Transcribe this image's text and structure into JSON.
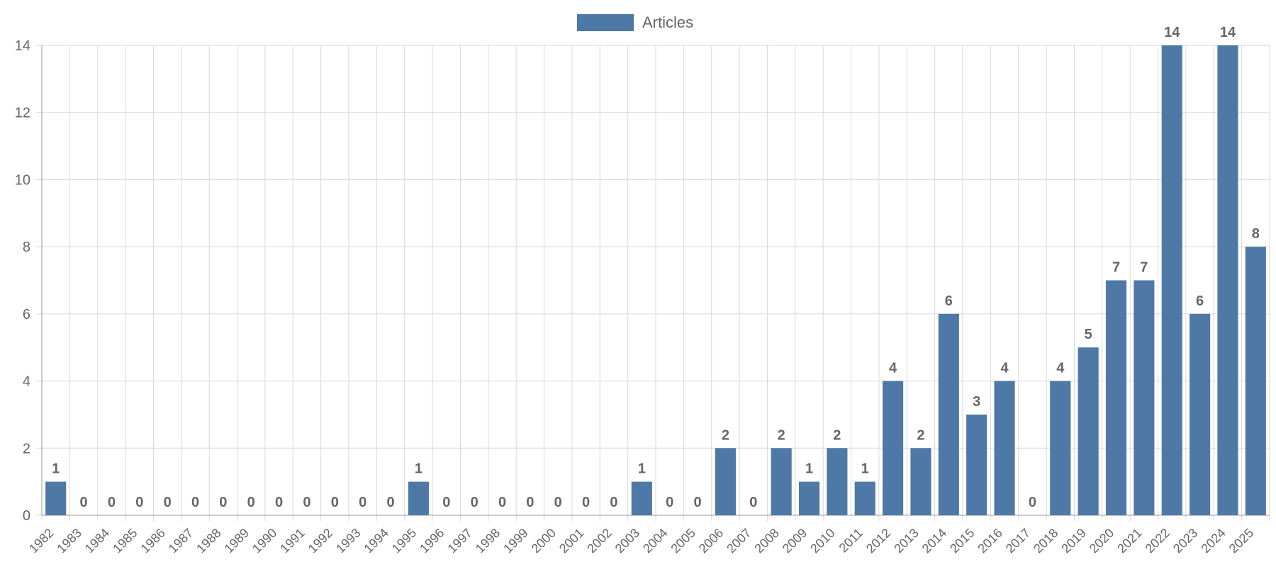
{
  "chart_data": {
    "type": "bar",
    "categories": [
      "1982",
      "1983",
      "1984",
      "1985",
      "1986",
      "1987",
      "1988",
      "1989",
      "1990",
      "1991",
      "1992",
      "1993",
      "1994",
      "1995",
      "1996",
      "1997",
      "1998",
      "1999",
      "2000",
      "2001",
      "2002",
      "2003",
      "2004",
      "2005",
      "2006",
      "2007",
      "2008",
      "2009",
      "2010",
      "2011",
      "2012",
      "2013",
      "2014",
      "2015",
      "2016",
      "2017",
      "2018",
      "2019",
      "2020",
      "2021",
      "2022",
      "2023",
      "2024",
      "2025"
    ],
    "series": [
      {
        "name": "Articles",
        "color": "#4e79a7",
        "values": [
          1,
          0,
          0,
          0,
          0,
          0,
          0,
          0,
          0,
          0,
          0,
          0,
          0,
          1,
          0,
          0,
          0,
          0,
          0,
          0,
          0,
          1,
          0,
          0,
          2,
          0,
          2,
          1,
          2,
          1,
          4,
          2,
          6,
          3,
          4,
          0,
          4,
          5,
          7,
          7,
          14,
          6,
          14,
          8
        ]
      }
    ],
    "ylim": [
      0,
      14
    ],
    "yticks": [
      0,
      2,
      4,
      6,
      8,
      10,
      12,
      14
    ],
    "grid": true,
    "legend_position": "top-center",
    "data_labels": true
  }
}
